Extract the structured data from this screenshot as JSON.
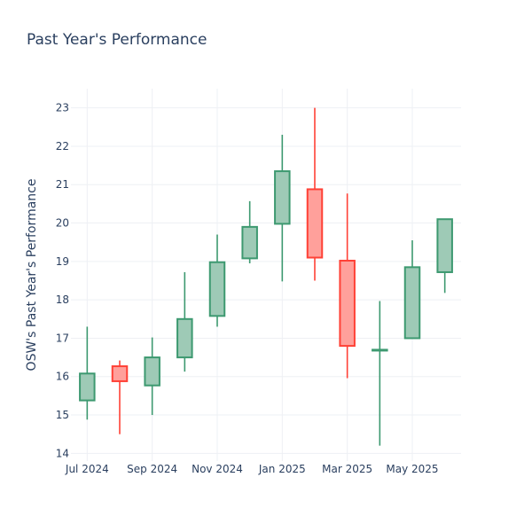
{
  "chart_data": {
    "type": "candlestick",
    "title": "Past Year's Performance",
    "xlabel": "",
    "ylabel": "OSW's Past Year's Performance",
    "ylim": [
      13.8,
      23.5
    ],
    "yticks": [
      14,
      15,
      16,
      17,
      18,
      19,
      20,
      21,
      22,
      23
    ],
    "grid": true,
    "xticks": [
      {
        "label": "Jul 2024",
        "index": 0
      },
      {
        "label": "Sep 2024",
        "index": 2
      },
      {
        "label": "Nov 2024",
        "index": 4
      },
      {
        "label": "Jan 2025",
        "index": 6
      },
      {
        "label": "Mar 2025",
        "index": 8
      },
      {
        "label": "May 2025",
        "index": 10
      }
    ],
    "candles": [
      {
        "month": "2024-07",
        "open": 15.38,
        "high": 17.3,
        "low": 14.88,
        "close": 16.08
      },
      {
        "month": "2024-08",
        "open": 16.27,
        "high": 16.42,
        "low": 14.5,
        "close": 15.88
      },
      {
        "month": "2024-09",
        "open": 15.77,
        "high": 17.02,
        "low": 15.0,
        "close": 16.5
      },
      {
        "month": "2024-10",
        "open": 16.5,
        "high": 18.72,
        "low": 16.13,
        "close": 17.5
      },
      {
        "month": "2024-11",
        "open": 17.58,
        "high": 19.7,
        "low": 17.3,
        "close": 18.98
      },
      {
        "month": "2024-12",
        "open": 19.08,
        "high": 20.57,
        "low": 18.95,
        "close": 19.9
      },
      {
        "month": "2025-01",
        "open": 19.98,
        "high": 22.3,
        "low": 18.48,
        "close": 21.35
      },
      {
        "month": "2025-02",
        "open": 20.88,
        "high": 23.0,
        "low": 18.5,
        "close": 19.1
      },
      {
        "month": "2025-03",
        "open": 19.02,
        "high": 20.77,
        "low": 15.96,
        "close": 16.8
      },
      {
        "month": "2025-04",
        "open": 16.7,
        "high": 17.97,
        "low": 14.2,
        "close": 16.7
      },
      {
        "month": "2025-05",
        "open": 17.0,
        "high": 19.55,
        "low": 17.0,
        "close": 18.85
      },
      {
        "month": "2025-06",
        "open": 18.72,
        "high": 20.1,
        "low": 18.18,
        "close": 20.1
      }
    ],
    "colors": {
      "increasing_line": "#3d9970",
      "increasing_fill": "#9ecab6",
      "decreasing_line": "#ff4136",
      "decreasing_fill": "#ffa09b"
    }
  }
}
